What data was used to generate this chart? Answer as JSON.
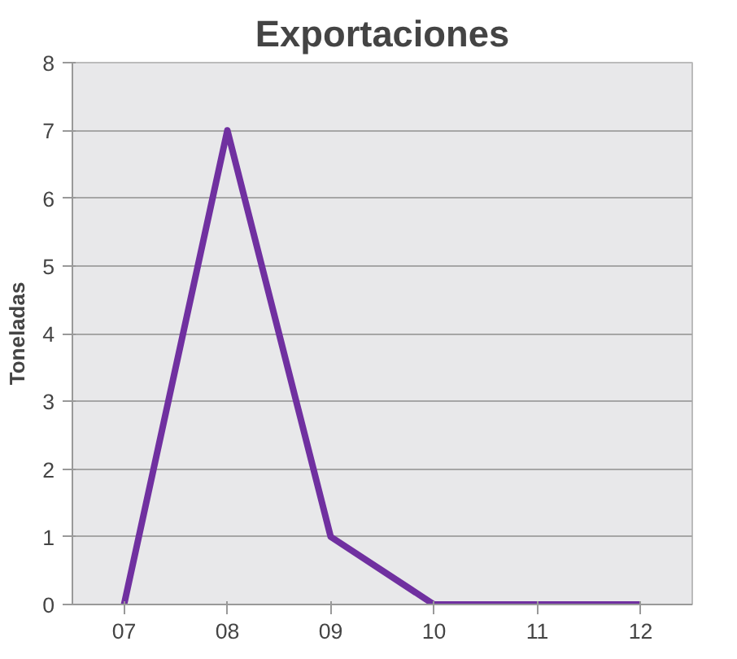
{
  "chart_data": {
    "type": "line",
    "title": "Exportaciones",
    "ylabel": "Toneladas",
    "categories": [
      "07",
      "08",
      "09",
      "10",
      "11",
      "12"
    ],
    "series": [
      {
        "color": "#7030a0",
        "values": [
          0,
          7,
          1,
          0,
          0,
          0
        ]
      }
    ],
    "ylim": [
      0,
      8
    ],
    "yticks": [
      0,
      1,
      2,
      3,
      4,
      5,
      6,
      7,
      8
    ],
    "grid": "y",
    "marker": "none"
  }
}
